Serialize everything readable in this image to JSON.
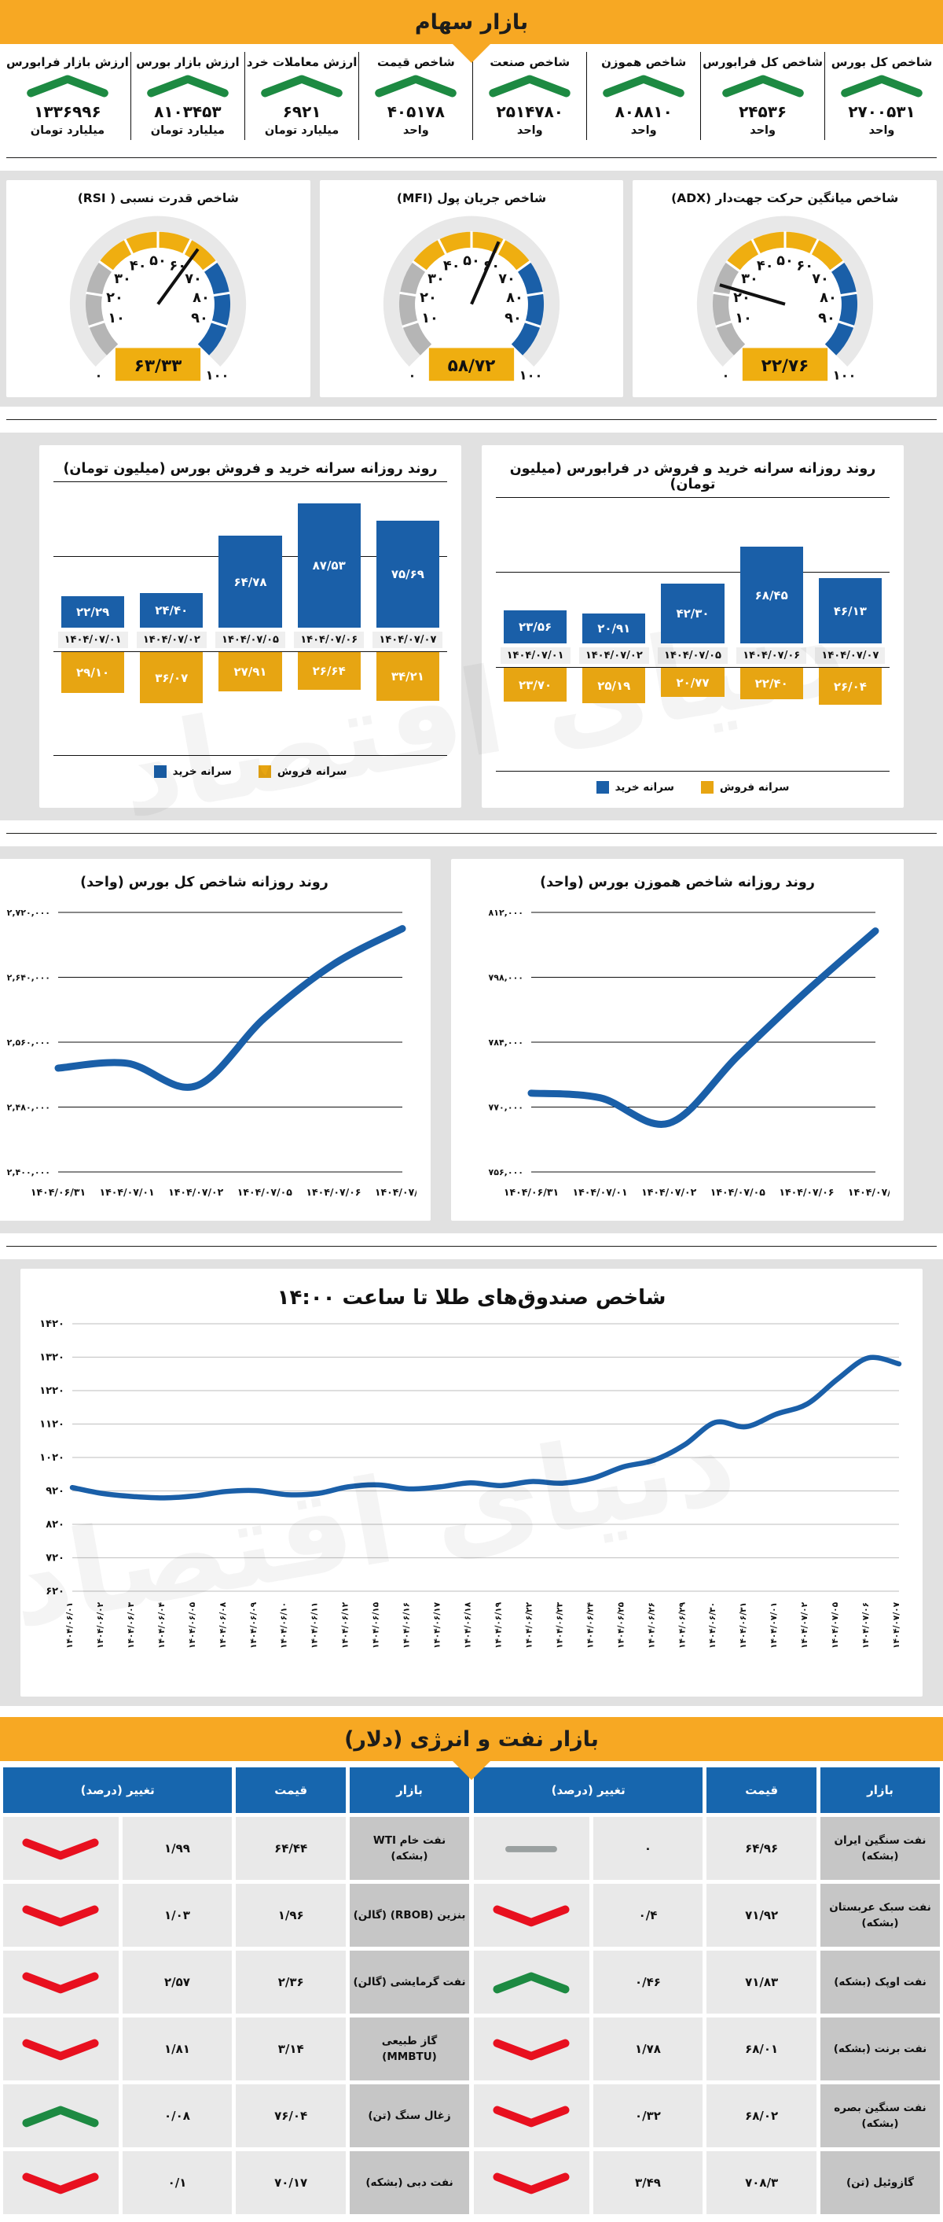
{
  "page": {
    "banner_stocks": "بازار سهام",
    "banner_energy": "بازار نفت و انرژی (دلار)",
    "watermark": "دنیای اقتصاد"
  },
  "colors": {
    "banner_yellow": "#F7A823",
    "up_green": "#1D8A42",
    "down_red": "#E8101F",
    "flat_gray": "#9AA0A0",
    "bar_blue": "#1A5FA8",
    "bar_gold": "#E7A512",
    "gauge_gray": "#B5B5B5",
    "gauge_gold": "#EFAE10",
    "gauge_blue": "#1A5FA8",
    "table_header_blue": "#1766AE"
  },
  "stats": {
    "items": [
      {
        "label": "شاخص کل بورس",
        "value": "۲۷۰۰۵۳۱",
        "unit": "واحد",
        "direction": "up"
      },
      {
        "label": "شاخص کل فرابورس",
        "value": "۲۴۵۳۶",
        "unit": "واحد",
        "direction": "up"
      },
      {
        "label": "شاخص هموزن",
        "value": "۸۰۸۸۱۰",
        "unit": "واحد",
        "direction": "up"
      },
      {
        "label": "شاخص صنعت",
        "value": "۲۵۱۴۷۸۰",
        "unit": "واحد",
        "direction": "up"
      },
      {
        "label": "شاخص قیمت",
        "value": "۴۰۵۱۷۸",
        "unit": "واحد",
        "direction": "up"
      },
      {
        "label": "ارزش معاملات خرد",
        "value": "۶۹۲۱",
        "unit": "میلیارد تومان",
        "direction": "up"
      },
      {
        "label": "ارزش بازار بورس",
        "value": "۸۱۰۳۴۵۳",
        "unit": "میلیارد تومان",
        "direction": "up"
      },
      {
        "label": "ارزش بازار فرابورس",
        "value": "۱۳۳۶۹۹۶",
        "unit": "میلیارد تومان",
        "direction": "up"
      }
    ]
  },
  "chart_data": [
    {
      "type": "gauge",
      "title": "شاخص میانگین حرکت جهت‌دار (ADX)",
      "value": 22.76,
      "value_label": "۲۲/۷۶",
      "min": 0,
      "max": 100,
      "tick_labels": [
        "۰",
        "۱۰",
        "۲۰",
        "۳۰",
        "۴۰",
        "۵۰",
        "۶۰",
        "۷۰",
        "۸۰",
        "۹۰",
        "۱۰۰"
      ],
      "segments": [
        {
          "from": 0,
          "to": 30,
          "color": "#B5B5B5"
        },
        {
          "from": 30,
          "to": 70,
          "color": "#EFAE10"
        },
        {
          "from": 70,
          "to": 100,
          "color": "#1A5FA8"
        }
      ]
    },
    {
      "type": "gauge",
      "title": "شاخص جریان پول (MFI)",
      "value": 58.72,
      "value_label": "۵۸/۷۲",
      "min": 0,
      "max": 100,
      "tick_labels": [
        "۰",
        "۱۰",
        "۲۰",
        "۳۰",
        "۴۰",
        "۵۰",
        "۶۰",
        "۷۰",
        "۸۰",
        "۹۰",
        "۱۰۰"
      ],
      "segments": [
        {
          "from": 0,
          "to": 30,
          "color": "#B5B5B5"
        },
        {
          "from": 30,
          "to": 70,
          "color": "#EFAE10"
        },
        {
          "from": 70,
          "to": 100,
          "color": "#1A5FA8"
        }
      ]
    },
    {
      "type": "gauge",
      "title": "شاخص قدرت نسبی ( RSI)",
      "value": 63.33,
      "value_label": "۶۳/۳۳",
      "min": 0,
      "max": 100,
      "tick_labels": [
        "۰",
        "۱۰",
        "۲۰",
        "۳۰",
        "۴۰",
        "۵۰",
        "۶۰",
        "۷۰",
        "۸۰",
        "۹۰",
        "۱۰۰"
      ],
      "segments": [
        {
          "from": 0,
          "to": 30,
          "color": "#B5B5B5"
        },
        {
          "from": 30,
          "to": 70,
          "color": "#EFAE10"
        },
        {
          "from": 70,
          "to": 100,
          "color": "#1A5FA8"
        }
      ]
    },
    {
      "type": "bar",
      "title": "روند روزانه سرانه خرید و فروش در فرابورس (میلیون تومان)",
      "categories": [
        "۱۴۰۴/۰۷/۰۱",
        "۱۴۰۴/۰۷/۰۲",
        "۱۴۰۴/۰۷/۰۵",
        "۱۴۰۴/۰۷/۰۶",
        "۱۴۰۴/۰۷/۰۷"
      ],
      "series": [
        {
          "name": "سرانه خرید",
          "color": "#1A5FA8",
          "values": [
            23.56,
            20.91,
            42.3,
            68.45,
            46.13
          ],
          "value_labels": [
            "۲۳/۵۶",
            "۲۰/۹۱",
            "۴۲/۳۰",
            "۶۸/۴۵",
            "۴۶/۱۳"
          ]
        },
        {
          "name": "سرانه فروش",
          "color": "#E7A512",
          "values": [
            23.7,
            25.19,
            20.77,
            22.4,
            26.04
          ],
          "value_labels": [
            "۲۳/۷۰",
            "۲۵/۱۹",
            "۲۰/۷۷",
            "۲۲/۴۰",
            "۲۶/۰۴"
          ]
        }
      ],
      "ylim": [
        0,
        100
      ]
    },
    {
      "type": "bar",
      "title": "روند روزانه سرانه خرید و فروش بورس (میلیون تومان)",
      "categories": [
        "۱۴۰۴/۰۷/۰۱",
        "۱۴۰۴/۰۷/۰۲",
        "۱۴۰۴/۰۷/۰۵",
        "۱۴۰۴/۰۷/۰۶",
        "۱۴۰۴/۰۷/۰۷"
      ],
      "series": [
        {
          "name": "سرانه خرید",
          "color": "#1A5FA8",
          "values": [
            22.29,
            24.4,
            64.78,
            87.53,
            75.69
          ],
          "value_labels": [
            "۲۲/۲۹",
            "۲۴/۴۰",
            "۶۴/۷۸",
            "۸۷/۵۳",
            "۷۵/۶۹"
          ]
        },
        {
          "name": "سرانه فروش",
          "color": "#E7A512",
          "values": [
            29.1,
            36.07,
            27.91,
            26.64,
            34.21
          ],
          "value_labels": [
            "۲۹/۱۰",
            "۳۶/۰۷",
            "۲۷/۹۱",
            "۲۶/۶۴",
            "۳۴/۲۱"
          ]
        }
      ],
      "ylim": [
        0,
        100
      ]
    },
    {
      "type": "line",
      "title": "روند روزانه شاخص هموزن بورس (واحد)",
      "x": [
        "۱۴۰۴/۰۶/۳۱",
        "۱۴۰۴/۰۷/۰۱",
        "۱۴۰۴/۰۷/۰۲",
        "۱۴۰۴/۰۷/۰۵",
        "۱۴۰۴/۰۷/۰۶",
        "۱۴۰۴/۰۷/۰۷"
      ],
      "values": [
        773000,
        772000,
        766500,
        781000,
        795000,
        808000
      ],
      "ylim": [
        756000,
        812000
      ],
      "y_tick_labels": [
        "۸۱۲,۰۰۰",
        "۷۹۸,۰۰۰",
        "۷۸۴,۰۰۰",
        "۷۷۰,۰۰۰",
        "۷۵۶,۰۰۰"
      ],
      "line_color": "#1A5FA8"
    },
    {
      "type": "line",
      "title": "روند روزانه شاخص کل بورس (واحد)",
      "x": [
        "۱۴۰۴/۰۶/۳۱",
        "۱۴۰۴/۰۷/۰۱",
        "۱۴۰۴/۰۷/۰۲",
        "۱۴۰۴/۰۷/۰۵",
        "۱۴۰۴/۰۷/۰۶",
        "۱۴۰۴/۰۷/۰۷"
      ],
      "values": [
        2528000,
        2534000,
        2506000,
        2590000,
        2656000,
        2700000
      ],
      "ylim": [
        2400000,
        2720000
      ],
      "y_tick_labels": [
        "۲,۷۲۰,۰۰۰",
        "۲,۶۴۰,۰۰۰",
        "۲,۵۶۰,۰۰۰",
        "۲,۴۸۰,۰۰۰",
        "۲,۴۰۰,۰۰۰"
      ],
      "line_color": "#1A5FA8"
    },
    {
      "type": "line",
      "title": "شاخص صندوق‌های طلا تا ساعت ۱۴:۰۰",
      "x": [
        "۱۴۰۴/۰۶/۰۱",
        "۱۴۰۴/۰۶/۰۲",
        "۱۴۰۴/۰۶/۰۳",
        "۱۴۰۴/۰۶/۰۴",
        "۱۴۰۴/۰۶/۰۵",
        "۱۴۰۴/۰۶/۰۸",
        "۱۴۰۴/۰۶/۰۹",
        "۱۴۰۴/۰۶/۱۰",
        "۱۴۰۴/۰۶/۱۱",
        "۱۴۰۴/۰۶/۱۲",
        "۱۴۰۴/۰۶/۱۵",
        "۱۴۰۴/۰۶/۱۶",
        "۱۴۰۴/۰۶/۱۷",
        "۱۴۰۴/۰۶/۱۸",
        "۱۴۰۴/۰۶/۱۹",
        "۱۴۰۴/۰۶/۲۲",
        "۱۴۰۴/۰۶/۲۳",
        "۱۴۰۴/۰۶/۲۴",
        "۱۴۰۴/۰۶/۲۵",
        "۱۴۰۴/۰۶/۲۶",
        "۱۴۰۴/۰۶/۲۹",
        "۱۴۰۴/۰۶/۳۰",
        "۱۴۰۴/۰۶/۳۱",
        "۱۴۰۴/۰۷/۰۱",
        "۱۴۰۴/۰۷/۰۲",
        "۱۴۰۴/۰۷/۰۵",
        "۱۴۰۴/۰۷/۰۶",
        "۱۴۰۴/۰۷/۰۷"
      ],
      "values": [
        930,
        912,
        903,
        899,
        905,
        918,
        921,
        909,
        912,
        932,
        938,
        926,
        932,
        944,
        936,
        948,
        943,
        958,
        992,
        1012,
        1058,
        1125,
        1112,
        1150,
        1180,
        1255,
        1318,
        1300
      ],
      "ylim": [
        620,
        1420
      ],
      "y_tick_labels": [
        "۱۴۲۰",
        "۱۳۲۰",
        "۱۲۲۰",
        "۱۱۲۰",
        "۱۰۲۰",
        "۹۲۰",
        "۸۲۰",
        "۷۲۰",
        "۶۲۰"
      ],
      "line_color": "#1A5FA8"
    },
    {
      "type": "table",
      "title": "بازار نفت و انرژی (دلار)",
      "headers": {
        "market": "بازار",
        "price": "قیمت",
        "change": "تغییر (درصد)"
      },
      "groups": [
        {
          "rows": [
            {
              "market": "نفت سنگین ایران (بشکه)",
              "price": "۶۴/۹۶",
              "change": "۰",
              "direction": "flat"
            },
            {
              "market": "نفت سبک عربستان (بشکه)",
              "price": "۷۱/۹۲",
              "change": "۰/۴",
              "direction": "down"
            },
            {
              "market": "نفت اوپک (بشکه)",
              "price": "۷۱/۸۳",
              "change": "۰/۴۶",
              "direction": "up"
            },
            {
              "market": "نفت برنت (بشکه)",
              "price": "۶۸/۰۱",
              "change": "۱/۷۸",
              "direction": "down"
            },
            {
              "market": "نفت سنگین بصره (بشکه)",
              "price": "۶۸/۰۲",
              "change": "۰/۳۲",
              "direction": "down"
            },
            {
              "market": "گازوئیل (تن)",
              "price": "۷۰۸/۳",
              "change": "۳/۴۹",
              "direction": "down"
            }
          ]
        },
        {
          "rows": [
            {
              "market": "نفت خام WTI (بشکه)",
              "price": "۶۴/۴۴",
              "change": "۱/۹۹",
              "direction": "down"
            },
            {
              "market": "بنزین (RBOB) (گالن)",
              "price": "۱/۹۶",
              "change": "۱/۰۳",
              "direction": "down"
            },
            {
              "market": "نفت گرمایشی (گالن)",
              "price": "۲/۳۶",
              "change": "۲/۵۷",
              "direction": "down"
            },
            {
              "market": "گاز طبیعی (MMBTU)",
              "price": "۳/۱۴",
              "change": "۱/۸۱",
              "direction": "down"
            },
            {
              "market": "زغال سنگ (تن)",
              "price": "۷۶/۰۴",
              "change": "۰/۰۸",
              "direction": "up"
            },
            {
              "market": "نفت دبی (بشکه)",
              "price": "۷۰/۱۷",
              "change": "۰/۱",
              "direction": "down"
            }
          ]
        }
      ]
    }
  ]
}
